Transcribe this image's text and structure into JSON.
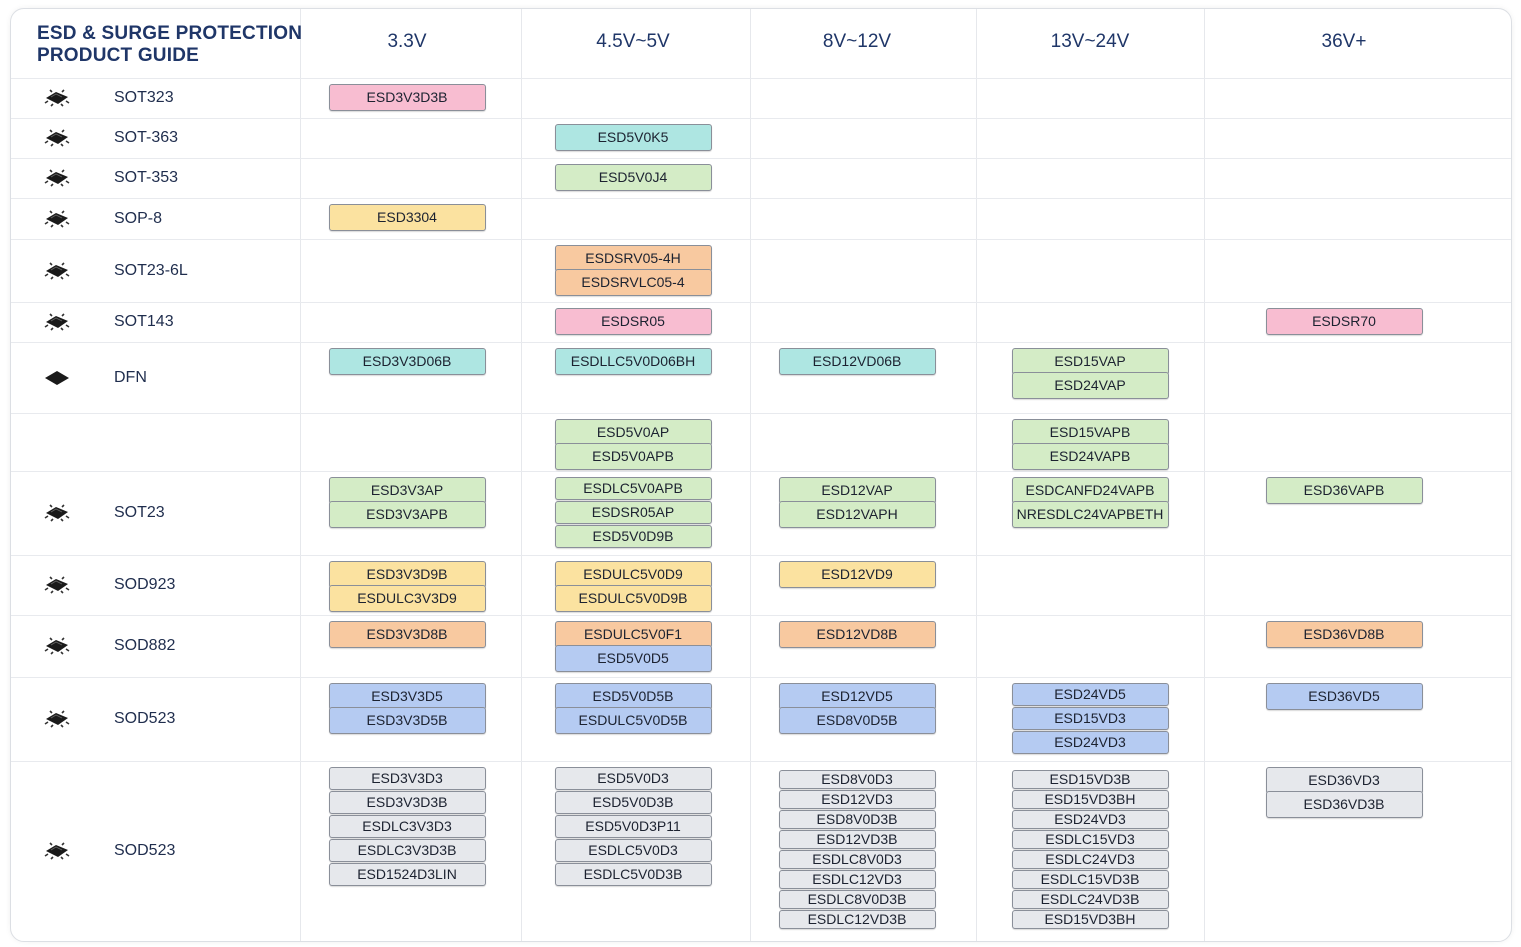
{
  "title_lines": [
    "ESD & SURGE PROTECTION",
    "PRODUCT GUIDE"
  ],
  "columns": [
    "3.3V",
    "4.5V~5V",
    "8V~12V",
    "13V~24V",
    "36V+"
  ],
  "colors": {
    "pink": "#f8bdd1",
    "cyan": "#aee6e2",
    "green": "#d4ecc6",
    "yellow": "#fbe2a0",
    "orange": "#f8c9a0",
    "blue": "#b5cbf2",
    "gray": "#e6e8ec",
    "title": "#1f3668",
    "border": "#8a8f99"
  },
  "rows": [
    {
      "package": "SOT323",
      "icon": "sot-package-icon",
      "parts": [
        [
          {
            "t": "ESD3V3D3B",
            "c": "pink"
          }
        ],
        [],
        [],
        [],
        []
      ]
    },
    {
      "package": "SOT-363",
      "icon": "sot-package-icon",
      "parts": [
        [],
        [
          {
            "t": "ESD5V0K5",
            "c": "cyan"
          }
        ],
        [],
        [],
        []
      ]
    },
    {
      "package": "SOT-353",
      "icon": "sot-package-icon",
      "parts": [
        [],
        [
          {
            "t": "ESD5V0J4",
            "c": "green"
          }
        ],
        [],
        [],
        []
      ]
    },
    {
      "package": "SOP-8",
      "icon": "sop-package-icon",
      "parts": [
        [
          {
            "t": "ESD3304",
            "c": "yellow"
          }
        ],
        [],
        [],
        [],
        []
      ]
    },
    {
      "package": "SOT23-6L",
      "icon": "sot-package-icon",
      "parts": [
        [],
        [
          {
            "t": "ESDSRV05-4H",
            "c": "orange"
          },
          {
            "t": "ESDSRVLC05-4",
            "c": "orange"
          }
        ],
        [],
        [],
        []
      ]
    },
    {
      "package": "SOT143",
      "icon": "sot-package-icon",
      "parts": [
        [],
        [
          {
            "t": "ESDSR05",
            "c": "pink"
          }
        ],
        [],
        [],
        [
          {
            "t": "ESDSR70",
            "c": "pink"
          }
        ]
      ]
    },
    {
      "package": "DFN",
      "icon": "dfn-package-icon",
      "parts": [
        [
          {
            "t": "ESD3V3D06B",
            "c": "cyan"
          }
        ],
        [
          {
            "t": "ESDLLC5V0D06BH",
            "c": "cyan"
          }
        ],
        [
          {
            "t": "ESD12VD06B",
            "c": "cyan"
          }
        ],
        [
          {
            "t": "ESD15VAP",
            "c": "green"
          },
          {
            "t": "ESD24VAP",
            "c": "green"
          }
        ],
        []
      ]
    },
    {
      "package": "",
      "icon": "",
      "parts": [
        [],
        [
          {
            "t": "ESD5V0AP",
            "c": "green"
          },
          {
            "t": "ESD5V0APB",
            "c": "green"
          }
        ],
        [],
        [
          {
            "t": "ESD15VAPB",
            "c": "green"
          },
          {
            "t": "ESD24VAPB",
            "c": "green"
          }
        ],
        []
      ]
    },
    {
      "package": "SOT23",
      "icon": "sot-package-icon",
      "parts": [
        [
          {
            "t": "ESD3V3AP",
            "c": "green"
          },
          {
            "t": "ESD3V3APB",
            "c": "green"
          }
        ],
        [
          {
            "t": "ESDLC5V0APB",
            "c": "green"
          },
          {
            "t": "ESDSR05AP",
            "c": "green"
          },
          {
            "t": "ESD5V0D9B",
            "c": "green"
          }
        ],
        [
          {
            "t": "ESD12VAP",
            "c": "green"
          },
          {
            "t": "ESD12VAPH",
            "c": "green"
          }
        ],
        [
          {
            "t": "ESDCANFD24VAPB",
            "c": "green"
          },
          {
            "t": "NRESDLC24VAPBETH",
            "c": "green"
          }
        ],
        [
          {
            "t": "ESD36VAPB",
            "c": "green"
          }
        ]
      ]
    },
    {
      "package": "SOD923",
      "icon": "sod-package-icon",
      "parts": [
        [
          {
            "t": "ESD3V3D9B",
            "c": "yellow"
          },
          {
            "t": "ESDULC3V3D9",
            "c": "yellow"
          }
        ],
        [
          {
            "t": "ESDULC5V0D9",
            "c": "yellow"
          },
          {
            "t": "ESDULC5V0D9B",
            "c": "yellow"
          }
        ],
        [
          {
            "t": "ESD12VD9",
            "c": "yellow"
          }
        ],
        [],
        []
      ]
    },
    {
      "package": "SOD882",
      "icon": "sod-package-icon",
      "parts": [
        [
          {
            "t": "ESD3V3D8B",
            "c": "orange"
          }
        ],
        [
          {
            "t": "ESDULC5V0F1",
            "c": "orange"
          },
          {
            "t": "ESD5V0D5",
            "c": "blue"
          }
        ],
        [
          {
            "t": "ESD12VD8B",
            "c": "orange"
          }
        ],
        [],
        [
          {
            "t": "ESD36VD8B",
            "c": "orange"
          }
        ]
      ]
    },
    {
      "package": "SOD523",
      "icon": "sod-package-icon",
      "parts": [
        [
          {
            "t": "ESD3V3D5",
            "c": "blue"
          },
          {
            "t": "ESD3V3D5B",
            "c": "blue"
          }
        ],
        [
          {
            "t": "ESD5V0D5B",
            "c": "blue"
          },
          {
            "t": "ESDULC5V0D5B",
            "c": "blue"
          }
        ],
        [
          {
            "t": "ESD12VD5",
            "c": "blue"
          },
          {
            "t": "ESD8V0D5B",
            "c": "blue"
          }
        ],
        [
          {
            "t": "ESD24VD5",
            "c": "blue"
          },
          {
            "t": "ESD15VD3",
            "c": "blue"
          },
          {
            "t": "ESD24VD3",
            "c": "blue"
          }
        ],
        [
          {
            "t": "ESD36VD5",
            "c": "blue"
          }
        ]
      ]
    },
    {
      "package": "SOD523",
      "icon": "sod-package-icon",
      "parts": [
        [
          {
            "t": "ESD3V3D3",
            "c": "gray"
          },
          {
            "t": "ESD3V3D3B",
            "c": "gray"
          },
          {
            "t": "ESDLC3V3D3",
            "c": "gray"
          },
          {
            "t": "ESDLC3V3D3B",
            "c": "gray"
          },
          {
            "t": "ESD1524D3LIN",
            "c": "gray"
          }
        ],
        [
          {
            "t": "ESD5V0D3",
            "c": "gray"
          },
          {
            "t": "ESD5V0D3B",
            "c": "gray"
          },
          {
            "t": "ESD5V0D3P11",
            "c": "gray"
          },
          {
            "t": "ESDLC5V0D3",
            "c": "gray"
          },
          {
            "t": "ESDLC5V0D3B",
            "c": "gray"
          }
        ],
        [
          {
            "t": "ESD8V0D3",
            "c": "gray"
          },
          {
            "t": "ESD12VD3",
            "c": "gray"
          },
          {
            "t": "ESD8V0D3B",
            "c": "gray"
          },
          {
            "t": "ESD12VD3B",
            "c": "gray"
          },
          {
            "t": "ESDLC8V0D3",
            "c": "gray"
          },
          {
            "t": "ESDLC12VD3",
            "c": "gray"
          },
          {
            "t": "ESDLC8V0D3B",
            "c": "gray"
          },
          {
            "t": "ESDLC12VD3B",
            "c": "gray"
          }
        ],
        [
          {
            "t": "ESD15VD3B",
            "c": "gray"
          },
          {
            "t": "ESD15VD3BH",
            "c": "gray"
          },
          {
            "t": "ESD24VD3",
            "c": "gray"
          },
          {
            "t": "ESDLC15VD3",
            "c": "gray"
          },
          {
            "t": "ESDLC24VD3",
            "c": "gray"
          },
          {
            "t": "ESDLC15VD3B",
            "c": "gray"
          },
          {
            "t": "ESDLC24VD3B",
            "c": "gray"
          },
          {
            "t": "ESD15VD3BH",
            "c": "gray"
          }
        ],
        [
          {
            "t": "ESD36VD3",
            "c": "gray"
          },
          {
            "t": "ESD36VD3B",
            "c": "gray"
          }
        ]
      ]
    }
  ]
}
